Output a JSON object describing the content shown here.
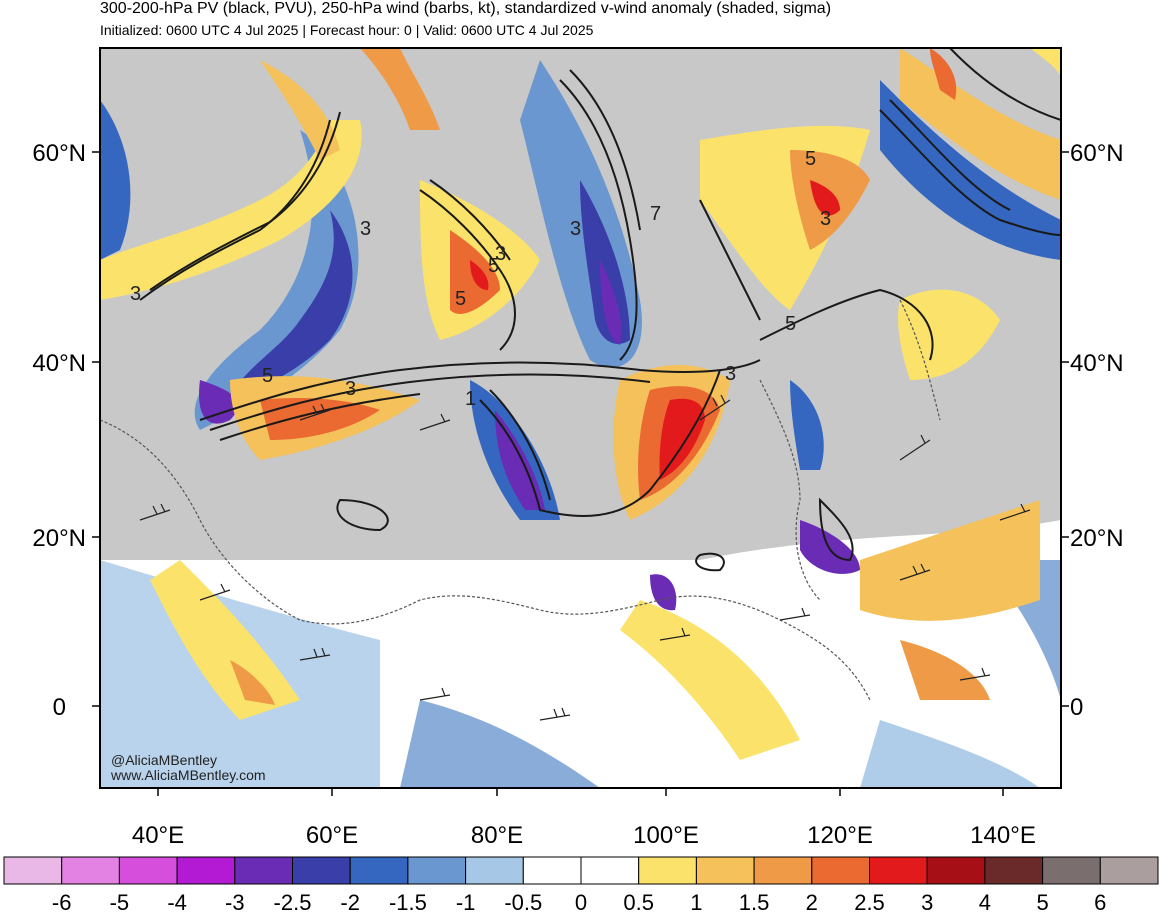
{
  "header": {
    "title": "300-200-hPa PV (black, PVU), 250-hPa wind (barbs, kt), standardized v-wind anomaly (shaded, sigma)",
    "subtitle": "Initialized: 0600 UTC 4 Jul 2025 | Forecast hour: 0 | Valid: 0600 UTC 4 Jul 2025"
  },
  "map": {
    "lat_labels_left": [
      "60°N",
      "40°N",
      "20°N",
      "0"
    ],
    "lat_labels_right": [
      "60°N",
      "40°N",
      "20°N",
      "0"
    ],
    "lon_labels": [
      "40°E",
      "60°E",
      "80°E",
      "100°E",
      "120°E",
      "140°E"
    ],
    "pv_contour_labels": [
      "3",
      "3",
      "5",
      "3",
      "5",
      "5",
      "3",
      "1",
      "3",
      "5",
      "3",
      "5",
      "3",
      "5",
      "7",
      "5"
    ],
    "credit_handle": "@AliciaMBentley",
    "credit_site": "www.AliciaMBentley.com"
  },
  "colorbar": {
    "labels": [
      "-6",
      "-5",
      "-4",
      "-3",
      "-2.5",
      "-2",
      "-1.5",
      "-1",
      "-0.5",
      "0",
      "0.5",
      "1",
      "1.5",
      "2",
      "2.5",
      "3",
      "4",
      "5",
      "6"
    ],
    "colors": [
      "#e9b8e7",
      "#e482e3",
      "#d64fdc",
      "#b31ad4",
      "#6a2bb5",
      "#3a3ea8",
      "#3567c0",
      "#6b97d0",
      "#a6c8e6",
      "#ffffff",
      "#ffffff",
      "#fbe36b",
      "#f4c15a",
      "#ef9a46",
      "#ea6a32",
      "#e31a1c",
      "#a50f15",
      "#6b2a2a",
      "#7a6e6e",
      "#aa9e9e"
    ]
  }
}
